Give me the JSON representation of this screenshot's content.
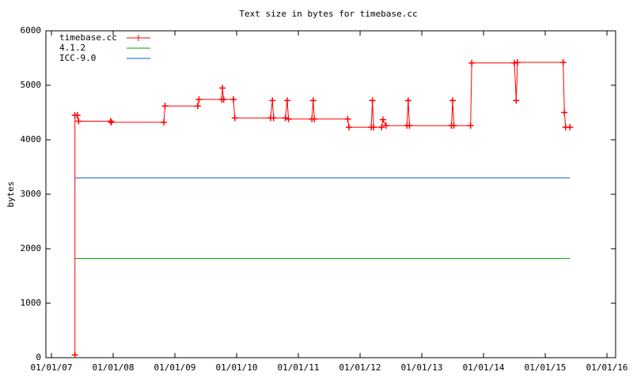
{
  "chart_data": {
    "type": "line",
    "title": "Text size in bytes for timebase.cc",
    "y_label": "bytes",
    "xlim": [
      2006.91,
      2016.14
    ],
    "ylim": [
      0,
      6000
    ],
    "xticks": [
      {
        "value": 2007,
        "label": "01/01/07"
      },
      {
        "value": 2008,
        "label": "01/01/08"
      },
      {
        "value": 2009,
        "label": "01/01/09"
      },
      {
        "value": 2010,
        "label": "01/01/10"
      },
      {
        "value": 2011,
        "label": "01/01/11"
      },
      {
        "value": 2012,
        "label": "01/01/12"
      },
      {
        "value": 2013,
        "label": "01/01/13"
      },
      {
        "value": 2014,
        "label": "01/01/14"
      },
      {
        "value": 2015,
        "label": "01/01/15"
      },
      {
        "value": 2016,
        "label": "01/01/16"
      }
    ],
    "yticks": [
      0,
      1000,
      2000,
      3000,
      4000,
      5000,
      6000
    ],
    "legend": "top-left",
    "series": [
      {
        "name": "timebase.cc",
        "color": "#ff0000",
        "markers": true,
        "x": [
          2007.38,
          2007.38,
          2007.42,
          2007.44,
          2007.96,
          2007.97,
          2008.82,
          2008.84,
          2009.37,
          2009.39,
          2009.76,
          2009.77,
          2009.79,
          2009.95,
          2009.97,
          2010.55,
          2010.58,
          2010.6,
          2010.79,
          2010.82,
          2010.84,
          2011.22,
          2011.24,
          2011.26,
          2011.8,
          2011.82,
          2012.18,
          2012.2,
          2012.22,
          2012.35,
          2012.37,
          2012.42,
          2012.76,
          2012.78,
          2012.8,
          2013.48,
          2013.5,
          2013.52,
          2013.79,
          2013.81,
          2014.5,
          2014.53,
          2014.55,
          2015.29,
          2015.31,
          2015.33,
          2015.4
        ],
        "values": [
          50,
          4450,
          4450,
          4340,
          4340,
          4320,
          4320,
          4620,
          4620,
          4740,
          4740,
          4950,
          4740,
          4740,
          4400,
          4400,
          4720,
          4400,
          4400,
          4720,
          4380,
          4380,
          4720,
          4380,
          4380,
          4230,
          4230,
          4720,
          4230,
          4230,
          4370,
          4260,
          4260,
          4720,
          4260,
          4260,
          4720,
          4260,
          4260,
          5410,
          5410,
          4720,
          5420,
          5420,
          4500,
          4230,
          4230
        ]
      },
      {
        "name": "4.1.2",
        "color": "#00a000",
        "markers": false,
        "x": [
          2007.38,
          2015.4
        ],
        "values": [
          1820,
          1820
        ]
      },
      {
        "name": "ICC-9.0",
        "color": "#0060c0",
        "markers": false,
        "x": [
          2007.38,
          2015.4
        ],
        "values": [
          3300,
          3300
        ]
      }
    ]
  }
}
